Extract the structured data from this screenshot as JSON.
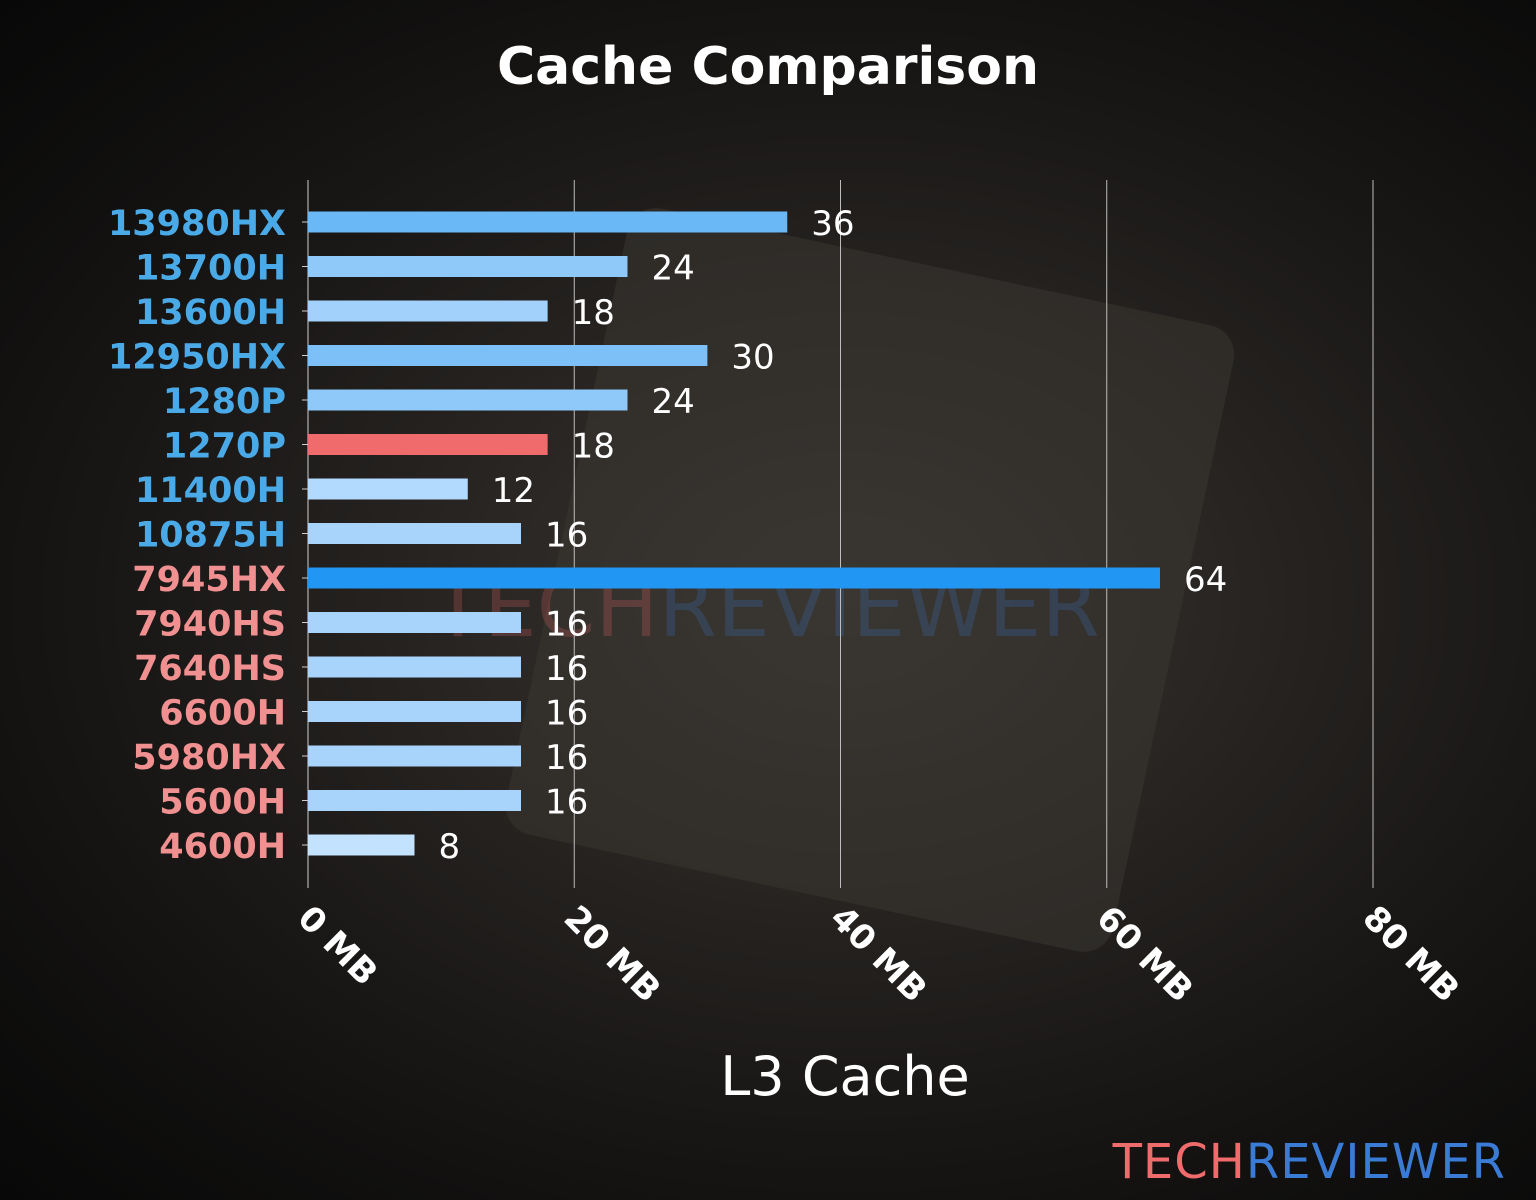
{
  "chart_data": {
    "type": "bar",
    "orientation": "horizontal",
    "title": "Cache Comparison",
    "xlabel": "L3 Cache",
    "ylabel": "",
    "xlim": [
      0,
      80
    ],
    "xticks": [
      0,
      20,
      40,
      60,
      80
    ],
    "xtick_labels": [
      "0 MB",
      "20 MB",
      "40 MB",
      "60 MB",
      "80 MB"
    ],
    "grid": "vertical",
    "categories": [
      "13980HX",
      "13700H",
      "13600H",
      "12950HX",
      "1280P",
      "1270P",
      "11400H",
      "10875H",
      "7945HX",
      "7940HS",
      "7640HS",
      "6600H",
      "5980HX",
      "5600H",
      "4600H"
    ],
    "values": [
      36,
      24,
      18,
      30,
      24,
      18,
      12,
      16,
      64,
      16,
      16,
      16,
      16,
      16,
      8
    ],
    "category_colors": [
      "#4aaae8",
      "#4aaae8",
      "#4aaae8",
      "#4aaae8",
      "#4aaae8",
      "#4aaae8",
      "#4aaae8",
      "#4aaae8",
      "#f09090",
      "#f09090",
      "#f09090",
      "#f09090",
      "#f09090",
      "#f09090",
      "#f09090"
    ],
    "bar_colors": [
      "#6ab8f5",
      "#8fc9f9",
      "#a2d2fb",
      "#7cc0f7",
      "#8fc9f9",
      "#f06b6b",
      "#b2daff",
      "#a8d4fb",
      "#2196f3",
      "#a8d4fb",
      "#a8d4fb",
      "#a8d4fb",
      "#a8d4fb",
      "#a8d4fb",
      "#c2e2fd"
    ]
  },
  "watermark": {
    "part1": "TECH",
    "part2": "REVIEWER",
    "color1": "#f06b6b",
    "color2": "#3a7bd5"
  }
}
